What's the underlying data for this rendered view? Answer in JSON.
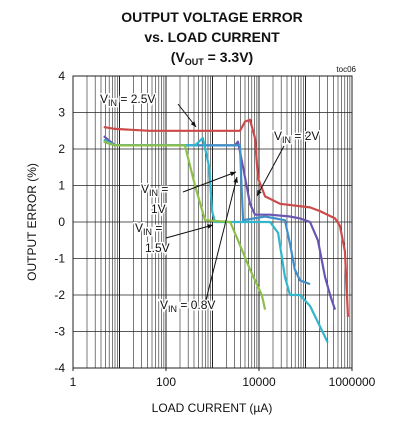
{
  "chart_data": {
    "type": "line",
    "title": [
      [
        "OUTPUT VOLTAGE ERROR"
      ],
      [
        "vs. LOAD CURRENT"
      ],
      [
        "(V",
        "OUT",
        " = 3.3V)"
      ]
    ],
    "note": "toc06",
    "xlabel": "LOAD CURRENT (µA)",
    "ylabel": "OUTPUT ERROR (%)",
    "xscale": "log",
    "xlim": [
      1,
      1000000
    ],
    "ylim": [
      -4,
      4
    ],
    "xticks": [
      1,
      100,
      10000,
      1000000
    ],
    "yticks": [
      -4,
      -3,
      -2,
      -1,
      0,
      1,
      2,
      3,
      4
    ],
    "grid": true,
    "series": [
      {
        "color": "#cc4a4a",
        "x": [
          4.6,
          8,
          45,
          3900,
          5000,
          6400,
          8200,
          9500,
          13500,
          28400,
          125000,
          205000,
          430000,
          550000,
          705000,
          820000
        ],
        "values": [
          2.6,
          2.55,
          2.5,
          2.5,
          2.75,
          2.8,
          2.3,
          1.2,
          0.7,
          0.5,
          0.4,
          0.3,
          0.1,
          -0.1,
          -0.8,
          -2.6
        ]
      },
      {
        "color": "#6a55b0",
        "x": [
          4.6,
          8,
          3000,
          3540,
          4550,
          6400,
          8200,
          17300,
          46500,
          76000,
          125000,
          185000,
          263000,
          338000,
          430000
        ],
        "values": [
          2.35,
          2.1,
          2.1,
          2.2,
          1.5,
          0.5,
          0.2,
          0.2,
          0.15,
          0.1,
          0,
          -0.5,
          -1.5,
          -2,
          -2.4
        ]
      },
      {
        "color": "#3f8fc8",
        "x": [
          4.6,
          8,
          3900,
          4200,
          4550,
          13500,
          36000,
          46500,
          59000,
          76000,
          125000
        ],
        "values": [
          2.2,
          2.1,
          2.1,
          1.0,
          0.05,
          0.15,
          0.05,
          -0.6,
          -1.3,
          -1.6,
          -1.7
        ]
      },
      {
        "color": "#33b5cc",
        "x": [
          4.6,
          8,
          420,
          620,
          850,
          980,
          1130,
          17300,
          25800,
          36000,
          46500,
          76000,
          125000,
          300000
        ],
        "values": [
          2.25,
          2.1,
          2.1,
          2.3,
          1.5,
          0.3,
          0,
          0,
          -0.3,
          -1.5,
          -2,
          -2,
          -2.3,
          -3.3
        ]
      },
      {
        "color": "#8cc04a",
        "x": [
          4.6,
          8,
          255,
          420,
          690,
          2400,
          3540,
          6400,
          11500,
          13500
        ],
        "values": [
          2.2,
          2.1,
          2.1,
          1,
          0.05,
          0,
          -0.5,
          -1.3,
          -2,
          -2.4
        ]
      }
    ],
    "annotations": [
      {
        "lines": [
          [
            "V",
            "IN",
            " = 2.5V"
          ]
        ]
      },
      {
        "lines": [
          [
            "V",
            "IN",
            " = 2V"
          ]
        ]
      },
      {
        "lines": [
          [
            "V",
            "IN",
            " ="
          ],
          [
            "1V"
          ]
        ]
      },
      {
        "lines": [
          [
            "V",
            "IN",
            " ="
          ],
          [
            "1.5V"
          ]
        ]
      },
      {
        "lines": [
          [
            "V",
            "IN",
            " = 0.8V"
          ]
        ]
      }
    ]
  }
}
